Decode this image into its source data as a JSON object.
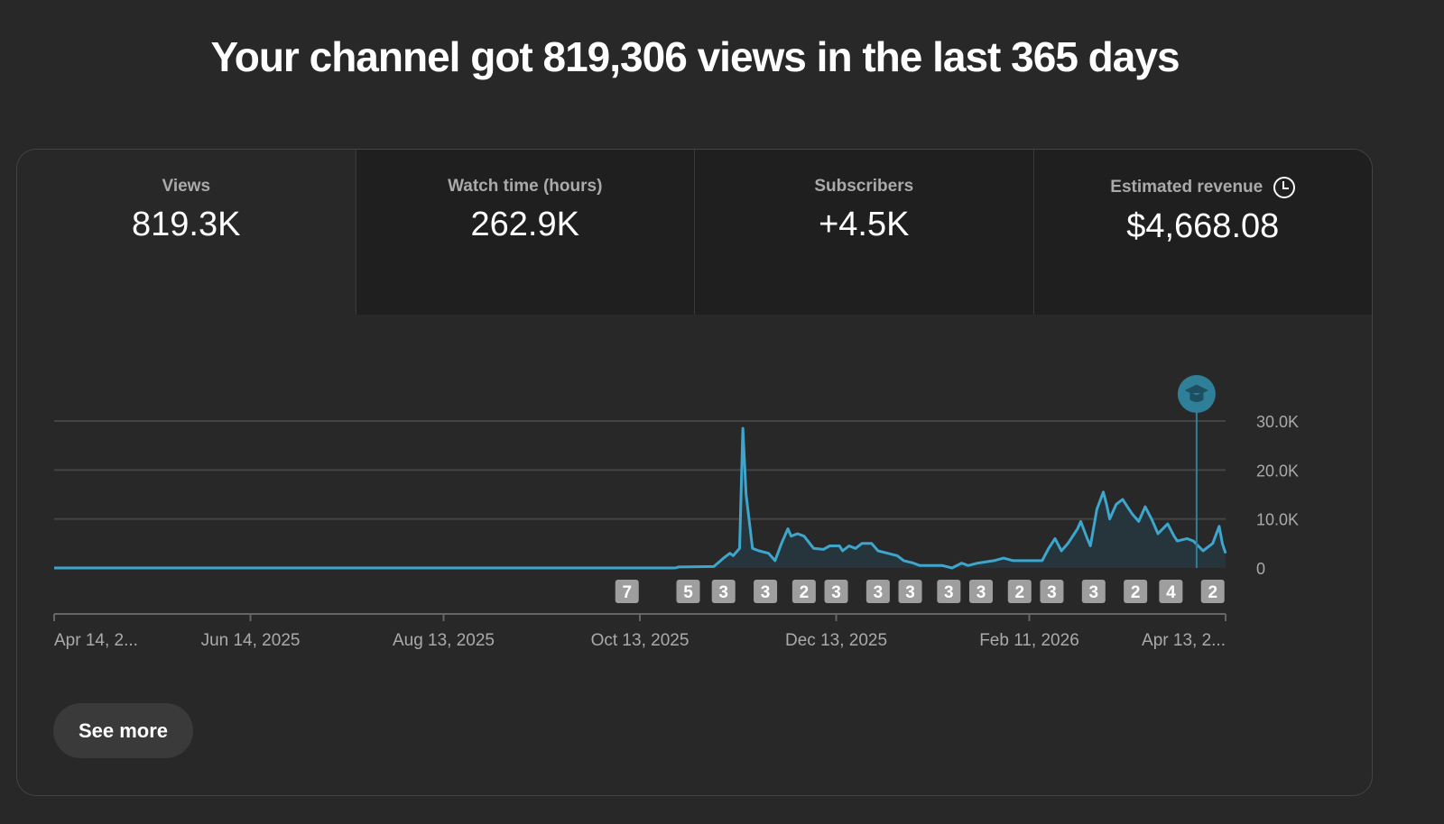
{
  "headline": "Your channel got 819,306 views in the last 365 days",
  "tabs": [
    {
      "label": "Views",
      "value": "819.3K"
    },
    {
      "label": "Watch time (hours)",
      "value": "262.9K"
    },
    {
      "label": "Subscribers",
      "value": "+4.5K"
    },
    {
      "label": "Estimated revenue",
      "value": "$4,668.08",
      "icon": "clock-icon"
    }
  ],
  "see_more": "See more",
  "colors": {
    "line": "#3ea6cc",
    "fill": "#25353b",
    "marker": "#9e9e9e",
    "cap": "#2f7f98"
  },
  "chart_data": {
    "type": "line",
    "title": "Views",
    "xlabel": "",
    "ylabel": "Views",
    "ylim": [
      0,
      30000
    ],
    "xlim": [
      0,
      364
    ],
    "y_ticks": [
      {
        "v": 30000,
        "label": "30.0K"
      },
      {
        "v": 20000,
        "label": "20.0K"
      },
      {
        "v": 10000,
        "label": "10.0K"
      },
      {
        "v": 0,
        "label": "0"
      }
    ],
    "x_ticks": [
      {
        "day": 0,
        "label": "Apr 14, 2..."
      },
      {
        "day": 61,
        "label": "Jun 14, 2025"
      },
      {
        "day": 121,
        "label": "Aug 13, 2025"
      },
      {
        "day": 182,
        "label": "Oct 13, 2025"
      },
      {
        "day": 243,
        "label": "Dec 13, 2025"
      },
      {
        "day": 303,
        "label": "Feb 11, 2026"
      },
      {
        "day": 364,
        "label": "Apr 13, 2..."
      }
    ],
    "series": [
      {
        "name": "Views",
        "points": [
          [
            0,
            0
          ],
          [
            193,
            0
          ],
          [
            194,
            200
          ],
          [
            205,
            300
          ],
          [
            208,
            2000
          ],
          [
            210,
            3000
          ],
          [
            211,
            2500
          ],
          [
            213,
            4000
          ],
          [
            214,
            28500
          ],
          [
            215,
            15000
          ],
          [
            217,
            4000
          ],
          [
            219,
            3500
          ],
          [
            222,
            3000
          ],
          [
            224,
            1500
          ],
          [
            226,
            5000
          ],
          [
            228,
            8000
          ],
          [
            229,
            6500
          ],
          [
            231,
            7000
          ],
          [
            233,
            6500
          ],
          [
            236,
            4000
          ],
          [
            239,
            3800
          ],
          [
            241,
            4500
          ],
          [
            244,
            4500
          ],
          [
            245,
            3500
          ],
          [
            247,
            4500
          ],
          [
            249,
            4000
          ],
          [
            251,
            5000
          ],
          [
            254,
            5000
          ],
          [
            256,
            3500
          ],
          [
            259,
            3000
          ],
          [
            262,
            2500
          ],
          [
            264,
            1500
          ],
          [
            267,
            1000
          ],
          [
            269,
            500
          ],
          [
            276,
            500
          ],
          [
            279,
            0
          ],
          [
            282,
            1000
          ],
          [
            284,
            500
          ],
          [
            287,
            1000
          ],
          [
            292,
            1500
          ],
          [
            295,
            2000
          ],
          [
            298,
            1500
          ],
          [
            304,
            1500
          ],
          [
            307,
            1500
          ],
          [
            309,
            4000
          ],
          [
            311,
            6000
          ],
          [
            313,
            3500
          ],
          [
            315,
            5000
          ],
          [
            318,
            8000
          ],
          [
            319,
            9500
          ],
          [
            321,
            6000
          ],
          [
            322,
            4500
          ],
          [
            324,
            12000
          ],
          [
            326,
            15500
          ],
          [
            327,
            13000
          ],
          [
            328,
            10000
          ],
          [
            330,
            13000
          ],
          [
            332,
            14000
          ],
          [
            334,
            12000
          ],
          [
            335,
            11000
          ],
          [
            337,
            9500
          ],
          [
            339,
            12500
          ],
          [
            341,
            10000
          ],
          [
            343,
            7000
          ],
          [
            346,
            9000
          ],
          [
            348,
            6500
          ],
          [
            349,
            5500
          ],
          [
            352,
            6000
          ],
          [
            354,
            5500
          ],
          [
            357,
            3500
          ],
          [
            360,
            5000
          ],
          [
            362,
            8500
          ],
          [
            363,
            5000
          ],
          [
            364,
            3000
          ]
        ]
      }
    ],
    "annotations": [
      {
        "day": 178,
        "label": "7"
      },
      {
        "day": 197,
        "label": "5"
      },
      {
        "day": 208,
        "label": "3"
      },
      {
        "day": 221,
        "label": "3"
      },
      {
        "day": 233,
        "label": "2"
      },
      {
        "day": 243,
        "label": "3"
      },
      {
        "day": 256,
        "label": "3"
      },
      {
        "day": 266,
        "label": "3"
      },
      {
        "day": 278,
        "label": "3"
      },
      {
        "day": 288,
        "label": "3"
      },
      {
        "day": 300,
        "label": "2"
      },
      {
        "day": 310,
        "label": "3"
      },
      {
        "day": 323,
        "label": "3"
      },
      {
        "day": 336,
        "label": "2"
      },
      {
        "day": 347,
        "label": "4"
      },
      {
        "day": 360,
        "label": "2"
      }
    ],
    "cursor": {
      "day": 355,
      "icon": "graduation-cap-icon"
    }
  }
}
